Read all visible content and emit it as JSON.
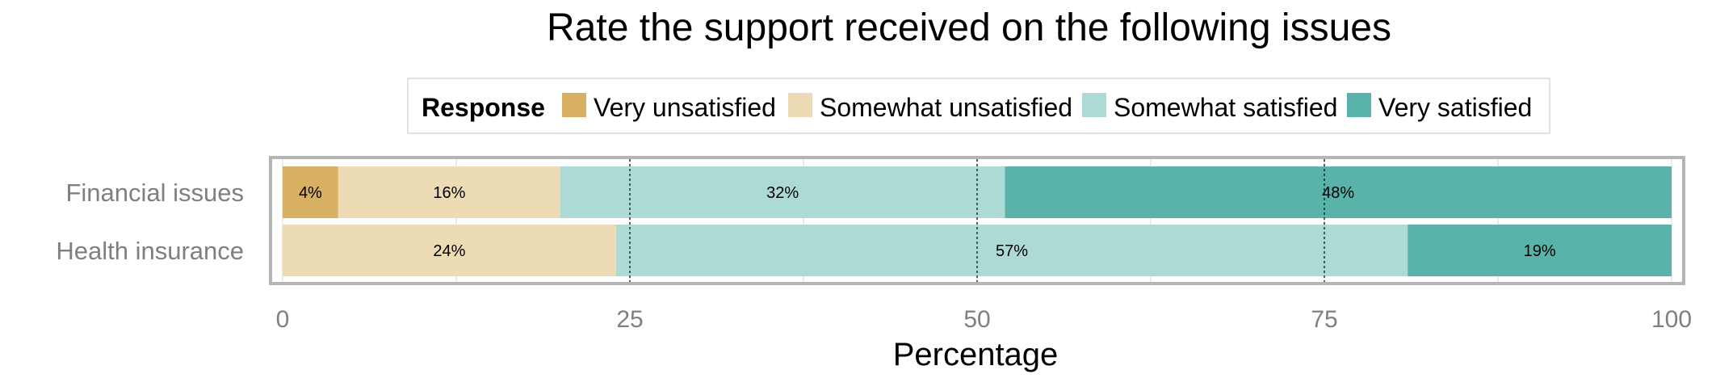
{
  "chart_data": {
    "type": "bar",
    "orientation": "horizontal",
    "stacked": true,
    "title": "Rate the support received on the following issues",
    "xlabel": "Percentage",
    "ylabel": "",
    "xlim": [
      0,
      100
    ],
    "xticks": [
      0,
      25,
      50,
      75,
      100
    ],
    "reference_lines": [
      25,
      50,
      75
    ],
    "legend": {
      "title": "Response",
      "placement": "top"
    },
    "categories": [
      "Financial issues",
      "Health insurance"
    ],
    "series": [
      {
        "name": "Very unsatisfied",
        "color": "#d8b062",
        "values": [
          4,
          0
        ],
        "labels": [
          "4%",
          ""
        ]
      },
      {
        "name": "Somewhat unsatisfied",
        "color": "#ecdbb4",
        "values": [
          16,
          24
        ],
        "labels": [
          "16%",
          "24%"
        ]
      },
      {
        "name": "Somewhat satisfied",
        "color": "#aedad6",
        "values": [
          32,
          57
        ],
        "labels": [
          "32%",
          "57%"
        ]
      },
      {
        "name": "Very satisfied",
        "color": "#5ab3aa",
        "values": [
          48,
          19
        ],
        "labels": [
          "48%",
          "19%"
        ]
      }
    ],
    "grid": true
  }
}
